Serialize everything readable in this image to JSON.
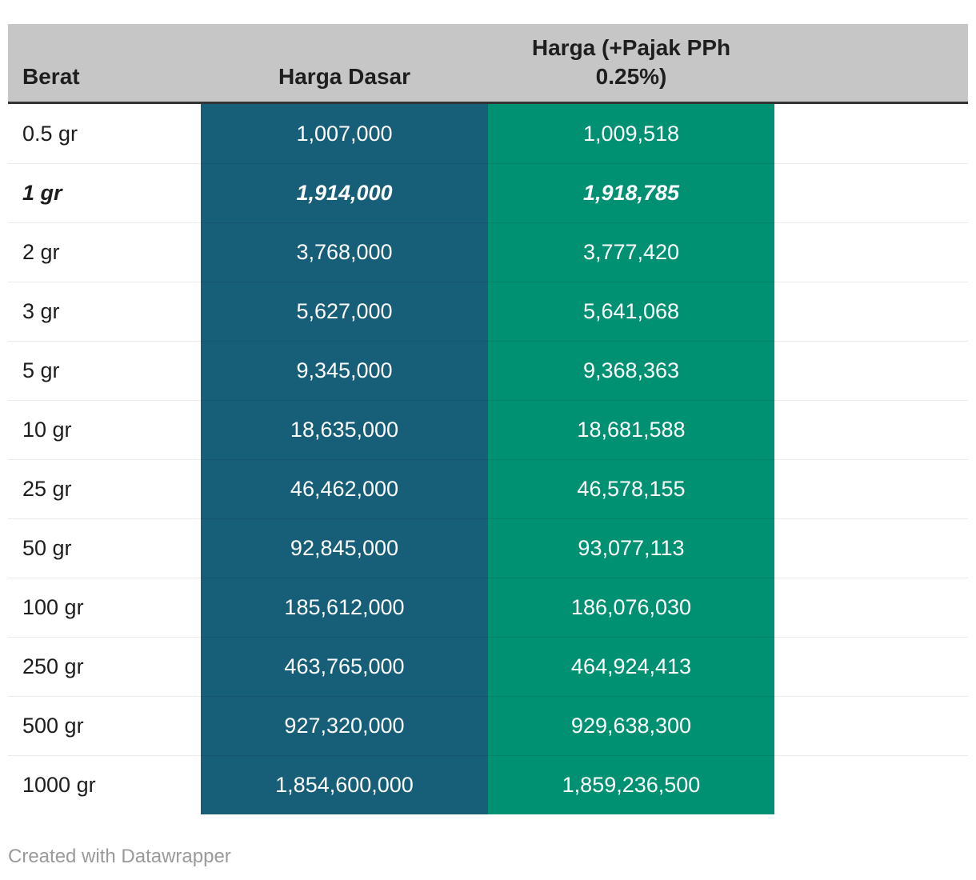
{
  "chart_data": {
    "type": "table",
    "title": "",
    "columns": [
      "Berat",
      "Harga Dasar",
      "Harga (+Pajak PPh 0.25%)"
    ],
    "rows": [
      [
        "0.5 gr",
        1007000,
        1009518
      ],
      [
        "1 gr",
        1914000,
        1918785
      ],
      [
        "2 gr",
        3768000,
        3777420
      ],
      [
        "3 gr",
        5627000,
        5641068
      ],
      [
        "5 gr",
        9345000,
        9368363
      ],
      [
        "10 gr",
        18635000,
        18681588
      ],
      [
        "25 gr",
        46462000,
        46578155
      ],
      [
        "50 gr",
        92845000,
        93077113
      ],
      [
        "100 gr",
        185612000,
        186076030
      ],
      [
        "250 gr",
        463765000,
        464924413
      ],
      [
        "500 gr",
        927320000,
        929638300
      ],
      [
        "1000 gr",
        1854600000,
        1859236500
      ]
    ],
    "emphasized_row": "1 gr",
    "layout_hints": {
      "harga_dasar_column_bg": "#175e78",
      "harga_pajak_column_bg": "#009173",
      "header_bg": "#c6c6c6",
      "number_alignment": "center"
    }
  },
  "header": {
    "col_berat": "Berat",
    "col_harga_dasar": "Harga Dasar",
    "col_harga_pajak": "Harga (+Pajak PPh 0.25%)"
  },
  "table": {
    "rows": [
      {
        "berat": "0.5 gr",
        "harga_dasar": "1,007,000",
        "harga_pajak": "1,009,518"
      },
      {
        "berat": "1 gr",
        "harga_dasar": "1,914,000",
        "harga_pajak": "1,918,785"
      },
      {
        "berat": "2 gr",
        "harga_dasar": "3,768,000",
        "harga_pajak": "3,777,420"
      },
      {
        "berat": "3 gr",
        "harga_dasar": "5,627,000",
        "harga_pajak": "5,641,068"
      },
      {
        "berat": "5 gr",
        "harga_dasar": "9,345,000",
        "harga_pajak": "9,368,363"
      },
      {
        "berat": "10 gr",
        "harga_dasar": "18,635,000",
        "harga_pajak": "18,681,588"
      },
      {
        "berat": "25 gr",
        "harga_dasar": "46,462,000",
        "harga_pajak": "46,578,155"
      },
      {
        "berat": "50 gr",
        "harga_dasar": "92,845,000",
        "harga_pajak": "93,077,113"
      },
      {
        "berat": "100 gr",
        "harga_dasar": "185,612,000",
        "harga_pajak": "186,076,030"
      },
      {
        "berat": "250 gr",
        "harga_dasar": "463,765,000",
        "harga_pajak": "464,924,413"
      },
      {
        "berat": "500 gr",
        "harga_dasar": "927,320,000",
        "harga_pajak": "929,638,300"
      },
      {
        "berat": "1000 gr",
        "harga_dasar": "1,854,600,000",
        "harga_pajak": "1,859,236,500"
      }
    ]
  },
  "footer": {
    "credit": "Created with Datawrapper"
  },
  "colors": {
    "header_bg": "#c6c6c6",
    "header_border": "#333333",
    "harga_dasar_bg": "#175e78",
    "harga_pajak_bg": "#009173",
    "text_dark": "#1d1d1d",
    "text_light": "#ffffff",
    "credit_text": "#9a9a9a"
  }
}
